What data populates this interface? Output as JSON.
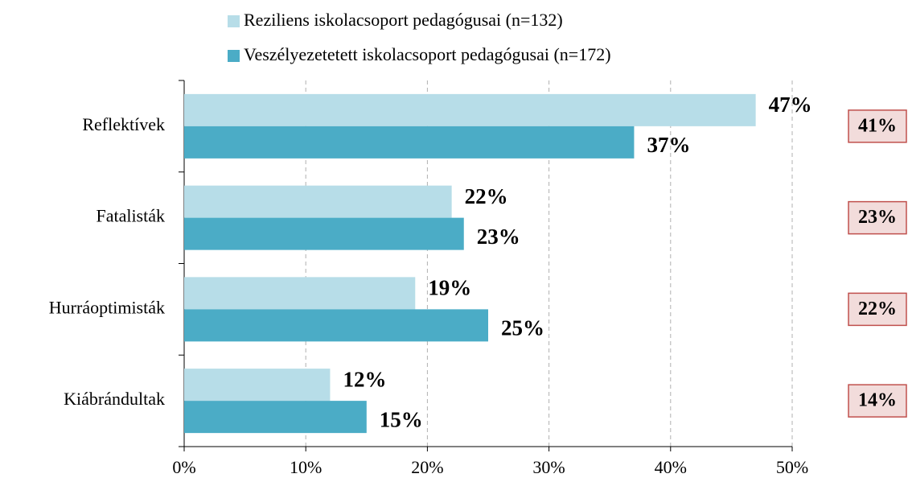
{
  "chart_data": {
    "type": "barh",
    "categories": [
      "Reflektívek",
      "Fatalisták",
      "Hurráoptimisták",
      "Kiábrándultak"
    ],
    "series": [
      {
        "name": "Reziliens iskolacsoport pedagógusai (n=132)",
        "color": "#b7dde8",
        "values": [
          47,
          22,
          19,
          12
        ],
        "value_labels": [
          "47%",
          "22%",
          "19%",
          "12%"
        ]
      },
      {
        "name": "Veszélyezetetett iskolacsoport pedagógusai (n=172)",
        "color": "#4bacc6",
        "values": [
          37,
          23,
          25,
          15
        ],
        "value_labels": [
          "37%",
          "23%",
          "25%",
          "15%"
        ]
      }
    ],
    "totals": [
      41,
      23,
      22,
      14
    ],
    "totals_labels": [
      "41%",
      "23%",
      "22%",
      "14%"
    ],
    "xlim": [
      0,
      50
    ],
    "xticks": [
      {
        "value": 0,
        "label": "0%"
      },
      {
        "value": 10,
        "label": "10%"
      },
      {
        "value": 20,
        "label": "20%"
      },
      {
        "value": 30,
        "label": "30%"
      },
      {
        "value": 40,
        "label": "40%"
      },
      {
        "value": 50,
        "label": "50%"
      }
    ],
    "grid": true,
    "legend": "top"
  }
}
